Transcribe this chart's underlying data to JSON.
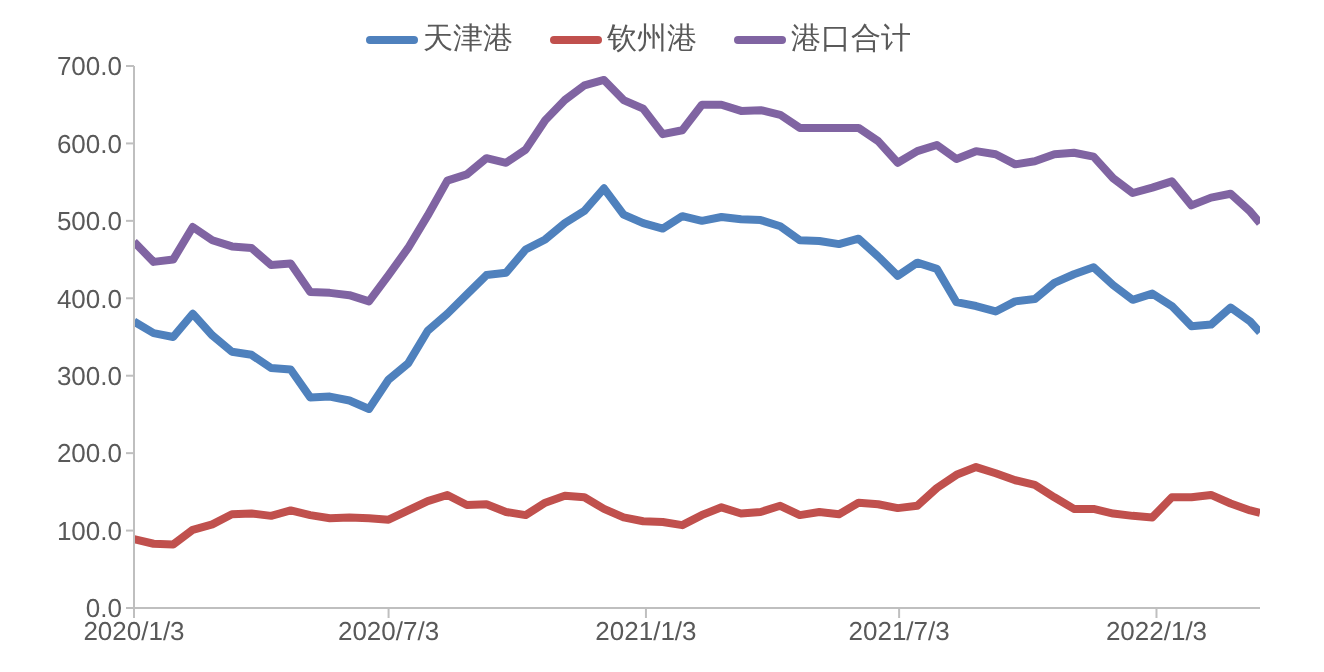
{
  "chart_data": {
    "type": "line",
    "legend": "top",
    "grid": false,
    "marker": "none",
    "line_style": "solid",
    "x": [
      "2020-01-03",
      "2020-01-17",
      "2020-01-31",
      "2020-02-14",
      "2020-02-28",
      "2020-03-13",
      "2020-03-27",
      "2020-04-10",
      "2020-04-24",
      "2020-05-08",
      "2020-05-22",
      "2020-06-05",
      "2020-06-19",
      "2020-07-03",
      "2020-07-17",
      "2020-07-31",
      "2020-08-14",
      "2020-08-28",
      "2020-09-11",
      "2020-09-25",
      "2020-10-09",
      "2020-10-23",
      "2020-11-06",
      "2020-11-20",
      "2020-12-04",
      "2020-12-18",
      "2021-01-01",
      "2021-01-15",
      "2021-01-29",
      "2021-02-12",
      "2021-02-26",
      "2021-03-12",
      "2021-03-26",
      "2021-04-09",
      "2021-04-23",
      "2021-05-07",
      "2021-05-21",
      "2021-06-04",
      "2021-06-18",
      "2021-07-02",
      "2021-07-16",
      "2021-07-30",
      "2021-08-13",
      "2021-08-27",
      "2021-09-10",
      "2021-09-24",
      "2021-10-08",
      "2021-10-22",
      "2021-11-05",
      "2021-11-19",
      "2021-12-03",
      "2021-12-17",
      "2021-12-31",
      "2022-01-14",
      "2022-01-28",
      "2022-02-11",
      "2022-02-25",
      "2022-03-11",
      "2022-03-18"
    ],
    "series": [
      {
        "name": "天津港",
        "color": "#4f81bd",
        "values": [
          370,
          355,
          350,
          380,
          352,
          331,
          327,
          310,
          308,
          272,
          273,
          268,
          257,
          295,
          316,
          358,
          380,
          405,
          430,
          433,
          463,
          476,
          497,
          513,
          542,
          508,
          497,
          490,
          506,
          500,
          505,
          502,
          501,
          493,
          475,
          474,
          470,
          477,
          454,
          429,
          446,
          438,
          395,
          390,
          383,
          396,
          399,
          420,
          431,
          440,
          417,
          398,
          406,
          390,
          364,
          366,
          388,
          370,
          356
        ]
      },
      {
        "name": "钦州港",
        "color": "#c0504d",
        "values": [
          89,
          83,
          82,
          101,
          108,
          121,
          122,
          119,
          126,
          120,
          116,
          117,
          116,
          114,
          126,
          138,
          146,
          133,
          134,
          124,
          120,
          136,
          145,
          143,
          128,
          117,
          112,
          111,
          107,
          120,
          130,
          122,
          124,
          132,
          120,
          124,
          121,
          136,
          134,
          129,
          132,
          155,
          172,
          182,
          174,
          165,
          159,
          143,
          128,
          128,
          122,
          119,
          117,
          143,
          143,
          146,
          135,
          126,
          123
        ]
      },
      {
        "name": "港口合计",
        "color": "#8064a2",
        "values": [
          473,
          447,
          450,
          492,
          475,
          467,
          465,
          443,
          445,
          408,
          407,
          404,
          396,
          430,
          465,
          507,
          552,
          560,
          581,
          575,
          592,
          630,
          656,
          675,
          682,
          656,
          645,
          612,
          617,
          650,
          650,
          642,
          643,
          637,
          620,
          620,
          620,
          620,
          603,
          575,
          590,
          598,
          580,
          590,
          586,
          573,
          577,
          586,
          588,
          583,
          555,
          536,
          543,
          551,
          520,
          530,
          535,
          512,
          497
        ]
      }
    ],
    "ylim": [
      0,
      700
    ],
    "yticks": [
      {
        "value": 0,
        "label": "0.0"
      },
      {
        "value": 100,
        "label": "100.0"
      },
      {
        "value": 200,
        "label": "200.0"
      },
      {
        "value": 300,
        "label": "300.0"
      },
      {
        "value": 400,
        "label": "400.0"
      },
      {
        "value": 500,
        "label": "500.0"
      },
      {
        "value": 600,
        "label": "600.0"
      },
      {
        "value": 700,
        "label": "700.0"
      }
    ],
    "xlim": [
      "2020-01-03",
      "2022-03-18"
    ],
    "xticks": [
      {
        "value": "2020-01-03",
        "label": "2020/1/3"
      },
      {
        "value": "2020-07-03",
        "label": "2020/7/3"
      },
      {
        "value": "2021-01-03",
        "label": "2021/1/3"
      },
      {
        "value": "2021-07-03",
        "label": "2021/7/3"
      },
      {
        "value": "2022-01-03",
        "label": "2022/1/3"
      }
    ]
  }
}
